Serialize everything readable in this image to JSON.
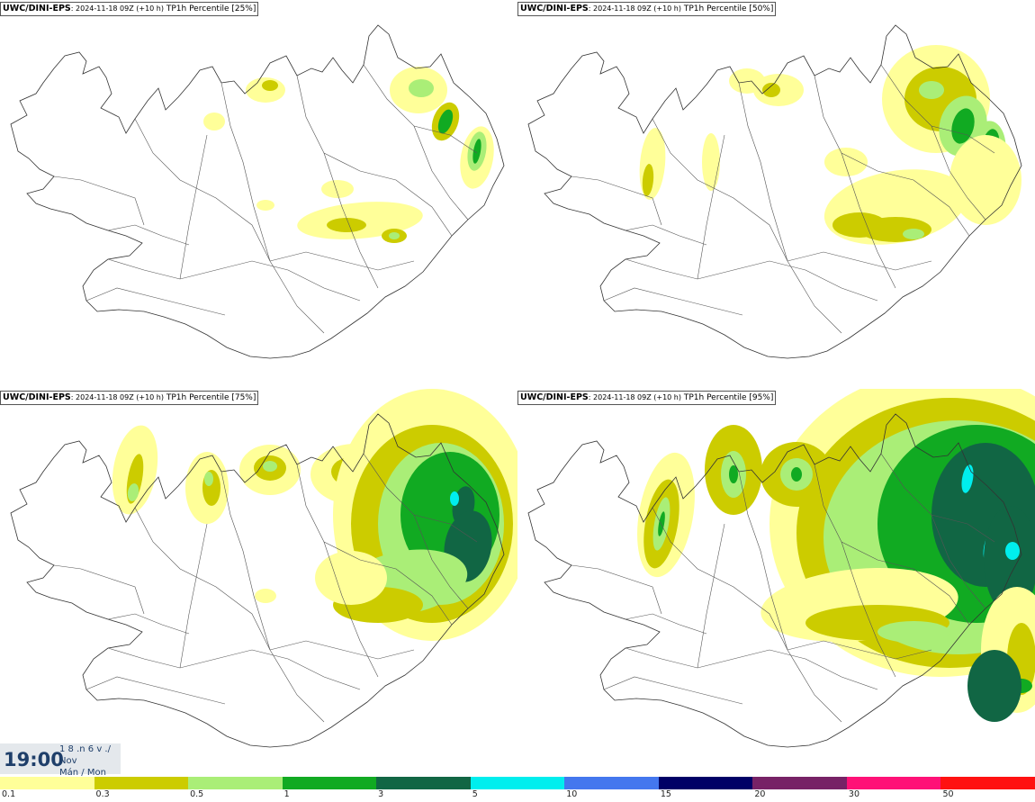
{
  "panels": [
    {
      "model": "UWC/DINI-EPS",
      "run": ": 2024-11-18 09Z (+10 h)",
      "label": " TP1h Percentile [25%]",
      "level": 1
    },
    {
      "model": "UWC/DINI-EPS",
      "run": ": 2024-11-18 09Z (+10 h)",
      "label": " TP1h Percentile [50%]",
      "level": 2
    },
    {
      "model": "UWC/DINI-EPS",
      "run": ": 2024-11-18 09Z (+10 h)",
      "label": " TP1h Percentile [75%]",
      "level": 3
    },
    {
      "model": "UWC/DINI-EPS",
      "run": ": 2024-11-18 09Z (+10 h)",
      "label": " TP1h Percentile [95%]",
      "level": 4
    }
  ],
  "time": {
    "clock": "19:00",
    "line1": "1 8 .n 6 v ./",
    "line2": "Nov",
    "line3": "Mán / Mon"
  },
  "legend": {
    "colors": [
      "#ffff99",
      "#cccc00",
      "#aaee77",
      "#11aa22",
      "#116644",
      "#00eeee",
      "#4477ee",
      "#000066",
      "#772266",
      "#ff1177",
      "#ff1111"
    ],
    "labels": [
      "0.1",
      "0.3",
      "0.5",
      "1",
      "3",
      "5",
      "10",
      "15",
      "20",
      "30",
      "50"
    ]
  },
  "colors": {
    "coast": "#333333",
    "p01": "#ffff99",
    "p03": "#cccc00",
    "p05": "#aaee77",
    "p1": "#11aa22",
    "p3": "#116644",
    "p5": "#00eeee"
  }
}
